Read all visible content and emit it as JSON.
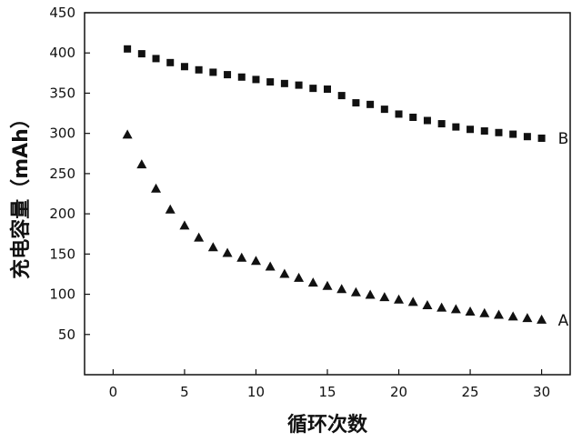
{
  "chart_data": {
    "type": "scatter",
    "title": "",
    "xlabel": "循环次数",
    "ylabel": "充电容量（mAh）",
    "xlim": [
      -2,
      32
    ],
    "ylim": [
      0,
      450
    ],
    "xticks": [
      0,
      5,
      10,
      15,
      20,
      25,
      30
    ],
    "yticks": [
      50,
      100,
      150,
      200,
      250,
      300,
      350,
      400,
      450
    ],
    "grid": false,
    "series": [
      {
        "name": "B",
        "marker": "square",
        "color": "#111111",
        "x": [
          1,
          2,
          3,
          4,
          5,
          6,
          7,
          8,
          9,
          10,
          11,
          12,
          13,
          14,
          15,
          16,
          17,
          18,
          19,
          20,
          21,
          22,
          23,
          24,
          25,
          26,
          27,
          28,
          29,
          30
        ],
        "y": [
          405,
          399,
          393,
          388,
          383,
          379,
          376,
          373,
          370,
          367,
          364,
          362,
          360,
          356,
          355,
          347,
          338,
          336,
          330,
          324,
          320,
          316,
          312,
          308,
          305,
          303,
          301,
          299,
          296,
          294
        ]
      },
      {
        "name": "A",
        "marker": "triangle",
        "color": "#111111",
        "x": [
          1,
          2,
          3,
          4,
          5,
          6,
          7,
          8,
          9,
          10,
          11,
          12,
          13,
          14,
          15,
          16,
          17,
          18,
          19,
          20,
          21,
          22,
          23,
          24,
          25,
          26,
          27,
          28,
          29,
          30
        ],
        "y": [
          298,
          261,
          231,
          205,
          185,
          170,
          158,
          151,
          145,
          141,
          134,
          125,
          120,
          114,
          110,
          106,
          102,
          99,
          96,
          93,
          90,
          86,
          83,
          81,
          78,
          76,
          74,
          72,
          70,
          68
        ]
      }
    ]
  }
}
